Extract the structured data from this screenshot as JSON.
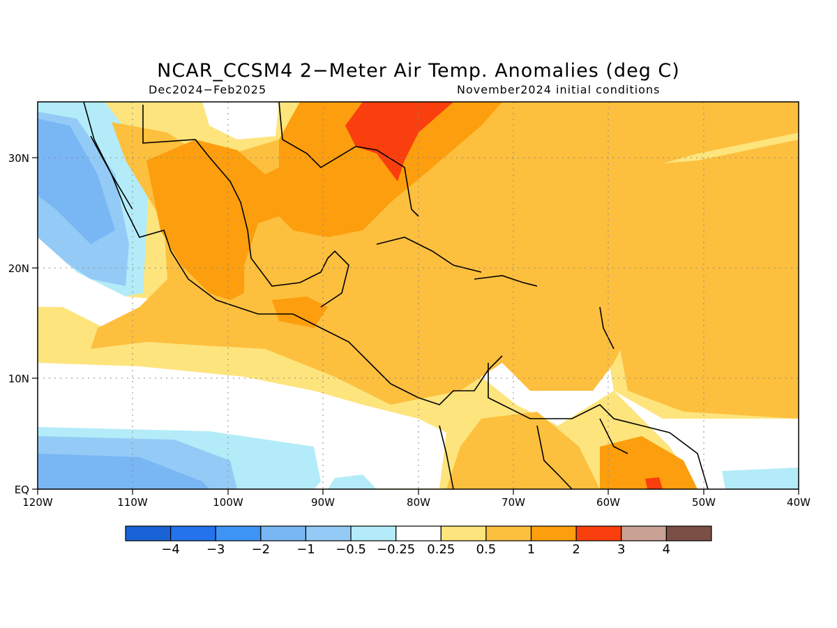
{
  "title": "NCAR_CCSM4 2−Meter Air Temp. Anomalies (deg C)",
  "subtitle_left": "Dec2024−Feb2025",
  "subtitle_right": "November2024 initial conditions",
  "lon_labels": [
    "120W",
    "110W",
    "100W",
    "90W",
    "80W",
    "70W",
    "60W",
    "50W",
    "40W"
  ],
  "lat_labels": [
    "EQ",
    "10N",
    "20N",
    "30N"
  ],
  "colorbar": {
    "colors": [
      "#1a63d6",
      "#2472ec",
      "#3d94f4",
      "#79b6f4",
      "#94cbf6",
      "#b3ecf8",
      "#ffffff",
      "#fde47d",
      "#fdbf3e",
      "#fc9e0d",
      "#fa3f0e",
      "#c9a295",
      "#7a4f45"
    ],
    "labels": [
      "−4",
      "−3",
      "−2",
      "−1",
      "−0.5",
      "−0.25",
      "0.25",
      "0.5",
      "1",
      "2",
      "3",
      "4"
    ]
  }
}
